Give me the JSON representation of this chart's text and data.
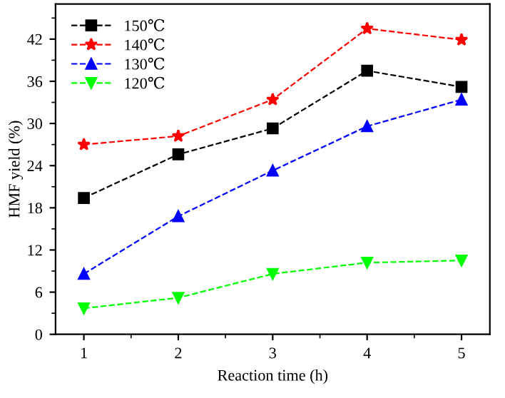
{
  "chart_data": {
    "type": "line",
    "xlabel": "Reaction time (h)",
    "ylabel": "HMF yield (%)",
    "x": [
      1,
      2,
      3,
      4,
      5
    ],
    "xlim": [
      0.7,
      5.3
    ],
    "xticks": [
      1,
      2,
      3,
      4,
      5
    ],
    "ylim": [
      0,
      47
    ],
    "yticks": [
      0,
      6,
      12,
      18,
      24,
      30,
      36,
      42
    ],
    "legend": "top left",
    "line_style": "dashed",
    "grid": false,
    "series": [
      {
        "name": "150℃",
        "color": "#000000",
        "marker": "square",
        "values": [
          19.4,
          25.6,
          29.3,
          37.5,
          35.2
        ]
      },
      {
        "name": "140℃",
        "color": "#ff0000",
        "marker": "star",
        "values": [
          27.0,
          28.2,
          33.4,
          43.5,
          41.9
        ]
      },
      {
        "name": "130℃",
        "color": "#0000ff",
        "marker": "triangle",
        "values": [
          8.6,
          16.8,
          23.3,
          29.6,
          33.4
        ]
      },
      {
        "name": "120℃",
        "color": "#00ff00",
        "marker": "triangle_down",
        "values": [
          3.7,
          5.2,
          8.6,
          10.2,
          10.5
        ]
      }
    ]
  }
}
